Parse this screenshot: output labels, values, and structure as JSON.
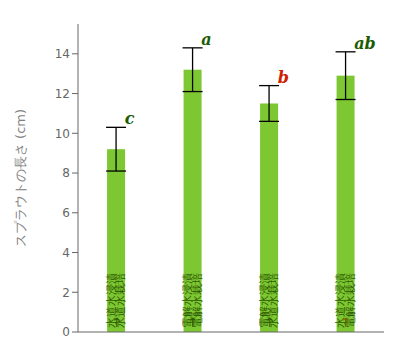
{
  "chart_data": {
    "type": "bar",
    "categories": [
      null,
      null,
      null,
      null
    ],
    "values": [
      9.2,
      13.2,
      11.5,
      12.9
    ],
    "errors": [
      1.1,
      1.1,
      0.9,
      1.2
    ],
    "color": "#7DC832",
    "ylabel": "スプラウトの長さ (cm)",
    "ylim": [
      0,
      15.5
    ],
    "yticks": [
      0,
      2,
      4,
      6,
      8,
      10,
      12,
      14
    ],
    "grid": false,
    "tick_labels": "y",
    "annotations": [
      {
        "text": "c",
        "color": "#1a5c00"
      },
      {
        "text": "a",
        "color": "#1a5c00"
      },
      {
        "text": "b",
        "color": "#cc2200"
      },
      {
        "text": "ab",
        "color": "#1a5c00"
      }
    ],
    "bar_texts": [
      {
        "texts": [
          "水道水浸漬",
          "→",
          "水道水栽培"
        ],
        "colors": [
          "#2d5a00",
          "#2d5a00",
          "#2d5a00"
        ]
      },
      {
        "texts": [
          "電解水浸漬",
          "→",
          "電解水栽培"
        ],
        "colors": [
          "#2d5a00",
          "#2d5a00",
          "#2d5a00"
        ]
      },
      {
        "texts": [
          "電解水浸漬",
          "→",
          "水道水栽培"
        ],
        "colors": [
          "#2d5a00",
          "#2d5a00",
          "#2d5a00"
        ]
      },
      {
        "texts": [
          "水道水浸漬",
          "→",
          "電解水栽培"
        ],
        "colors": [
          "#2d5a00",
          "#996600",
          "#2d5a00"
        ]
      }
    ]
  }
}
